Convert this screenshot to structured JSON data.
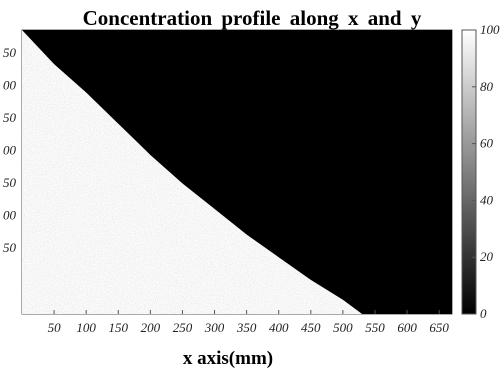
{
  "chart_data": {
    "type": "heatmap",
    "title": "Concentration profile along x and y",
    "xlabel": "x axis(mm)",
    "ylabel": "",
    "xticks": [
      50,
      100,
      150,
      200,
      250,
      300,
      350,
      400,
      450,
      500,
      550,
      600,
      650
    ],
    "yticks": [
      "50",
      "00",
      "50",
      "00",
      "50",
      "00",
      "50"
    ],
    "xlim": [
      0,
      670
    ],
    "colorbar": {
      "min": 0,
      "max": 100,
      "ticks": [
        0,
        20,
        40,
        60,
        80,
        100
      ],
      "colormap": "gray"
    },
    "boundary": {
      "description_values_x_mm": [
        0,
        25,
        50,
        100,
        150,
        200,
        250,
        300,
        350,
        400,
        450,
        500,
        530
      ],
      "row_fraction_from_top": [
        0.0,
        0.06,
        0.12,
        0.22,
        0.33,
        0.44,
        0.54,
        0.63,
        0.72,
        0.8,
        0.88,
        0.95,
        1.0
      ],
      "upper_right_value": 0,
      "lower_left_value": 100
    }
  }
}
